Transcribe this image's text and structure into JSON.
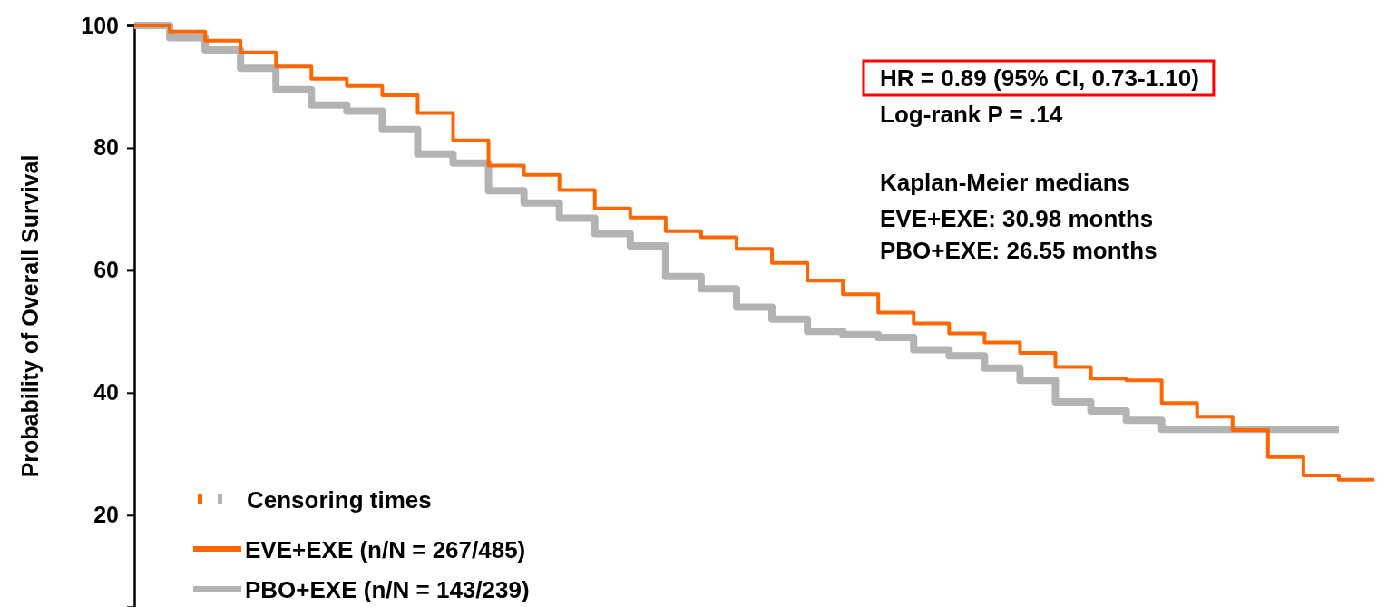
{
  "chart_data": {
    "type": "step",
    "ylabel": "Probability of Overall Survival",
    "categories": [
      null,
      null,
      null,
      null,
      null,
      null,
      null,
      null,
      null,
      null,
      null,
      null,
      null,
      null,
      null,
      null,
      null,
      null,
      null,
      null,
      null,
      null,
      null,
      null,
      null,
      null,
      null,
      null,
      null,
      null,
      null,
      null,
      null,
      null,
      null,
      null
    ],
    "series": [
      {
        "name": "EVE+EXE (n/N = 267/485)",
        "color": "#ff6600",
        "values": [
          100,
          99,
          97.5,
          95.6,
          93.3,
          91.3,
          90.1,
          88.6,
          85.7,
          81.2,
          77.1,
          75.6,
          73.1,
          70.1,
          68.6,
          66.4,
          65.4,
          63.5,
          61.2,
          58.3,
          56.1,
          53.1,
          51.3,
          49.7,
          48.2,
          46.5,
          44.2,
          42.3,
          42,
          38.3,
          36.1,
          33.9,
          29.5,
          26.5,
          25.8,
          25.8
        ]
      },
      {
        "name": "PBO+EXE (n/N = 143/239)",
        "color": "#b3b3b3",
        "values": [
          100,
          98,
          96,
          93,
          89.5,
          87,
          86,
          83,
          79,
          77.5,
          73,
          71,
          68.5,
          66,
          64,
          59,
          57,
          54,
          52,
          50,
          49.5,
          49,
          47,
          46,
          44,
          42,
          38.5,
          37,
          35.5,
          34,
          34,
          34,
          34,
          34,
          34,
          null
        ]
      }
    ],
    "ylim": [
      5,
      100
    ],
    "yticks": [
      20,
      40,
      60,
      80,
      100
    ],
    "tick_labels": "y",
    "grid": false,
    "legend": "bottom left",
    "line_style": "solid",
    "annotations": [
      "HR = 0.89 (95% CI, 0.73-1.10)",
      "Log-rank P = .14",
      "Kaplan-Meier medians",
      "EVE+EXE: 30.98 months",
      "PBO+EXE: 26.55 months",
      "Censoring times"
    ]
  }
}
